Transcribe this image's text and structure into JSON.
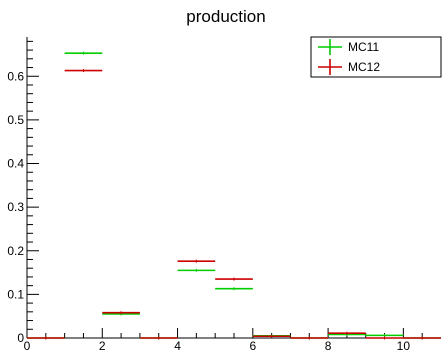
{
  "chart_data": {
    "type": "histogram",
    "title": "production",
    "xlabel": "",
    "ylabel": "",
    "xlim": [
      0,
      11
    ],
    "ylim": [
      0,
      0.69
    ],
    "x_ticks": [
      "0",
      "2",
      "4",
      "6",
      "8",
      "10"
    ],
    "y_ticks": [
      "0",
      "0.1",
      "0.2",
      "0.3",
      "0.4",
      "0.5",
      "0.6"
    ],
    "grid": false,
    "legend_position": "top-right",
    "bin_edges": [
      0,
      1,
      2,
      3,
      4,
      5,
      6,
      7,
      8,
      9,
      10,
      11
    ],
    "series": [
      {
        "name": "MC11",
        "color": "#00cc00",
        "values": [
          0,
          0.653,
          0.055,
          0,
          0.155,
          0.113,
          0.005,
          0,
          0.008,
          0.006,
          0
        ]
      },
      {
        "name": "MC12",
        "color": "#cc0000",
        "values": [
          0,
          0.613,
          0.058,
          0,
          0.176,
          0.135,
          0.004,
          0,
          0.011,
          0,
          0
        ]
      }
    ]
  }
}
